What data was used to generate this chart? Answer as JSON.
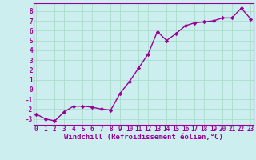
{
  "x": [
    0,
    1,
    2,
    3,
    4,
    5,
    6,
    7,
    8,
    9,
    10,
    11,
    12,
    13,
    14,
    15,
    16,
    17,
    18,
    19,
    20,
    21,
    22,
    23
  ],
  "y": [
    -2.5,
    -3.0,
    -3.2,
    -2.3,
    -1.7,
    -1.7,
    -1.8,
    -2.0,
    -2.1,
    -0.4,
    0.8,
    2.2,
    3.6,
    5.9,
    5.0,
    5.7,
    6.5,
    6.8,
    6.9,
    7.0,
    7.3,
    7.3,
    8.3,
    7.2
  ],
  "line_color": "#990099",
  "marker": "D",
  "marker_size": 2.2,
  "line_width": 1.0,
  "xlabel": "Windchill (Refroidissement éolien,°C)",
  "ytick_labels": [
    "8",
    "7",
    "6",
    "5",
    "4",
    "3",
    "2",
    "1",
    "0",
    "-1",
    "-2",
    "-3"
  ],
  "ytick_vals": [
    8,
    7,
    6,
    5,
    4,
    3,
    2,
    1,
    0,
    -1,
    -2,
    -3
  ],
  "xtick_vals": [
    0,
    1,
    2,
    3,
    4,
    5,
    6,
    7,
    8,
    9,
    10,
    11,
    12,
    13,
    14,
    15,
    16,
    17,
    18,
    19,
    20,
    21,
    22,
    23
  ],
  "xlim": [
    -0.3,
    23.3
  ],
  "ylim": [
    -3.6,
    8.8
  ],
  "bg_color": "#cceeee",
  "grid_color": "#aaddcc",
  "font_color": "#990099",
  "tick_fontsize": 5.5,
  "xlabel_fontsize": 6.5,
  "spine_color": "#990099"
}
